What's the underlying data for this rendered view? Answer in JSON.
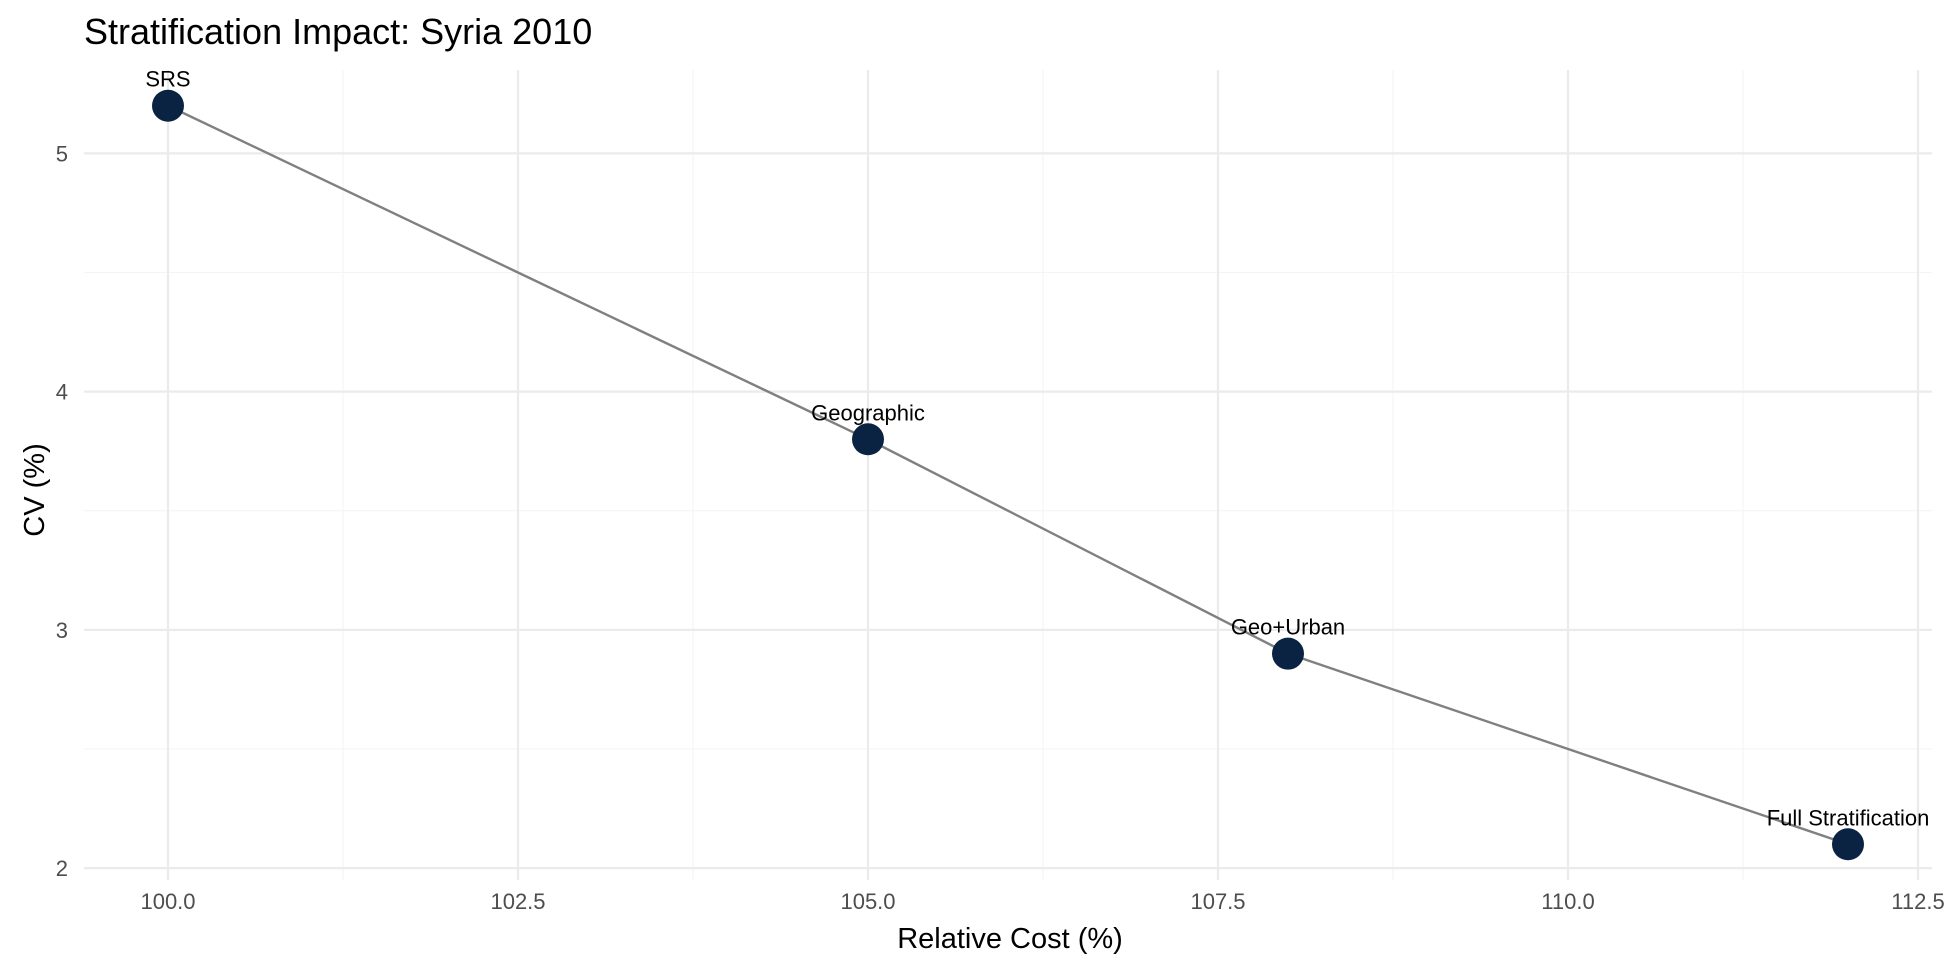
{
  "chart_data": {
    "type": "line",
    "title": "Stratification Impact: Syria 2010",
    "xlabel": "Relative Cost (%)",
    "ylabel": "CV (%)",
    "xlim": [
      99.4,
      112.6
    ],
    "ylim": [
      1.95,
      5.35
    ],
    "x_ticks": [
      100.0,
      102.5,
      105.0,
      107.5,
      110.0,
      112.5
    ],
    "x_tick_labels": [
      "100.0",
      "102.5",
      "105.0",
      "107.5",
      "110.0",
      "112.5"
    ],
    "y_ticks": [
      2,
      3,
      4,
      5
    ],
    "y_tick_labels": [
      "2",
      "3",
      "4",
      "5"
    ],
    "grid": true,
    "legend": "none",
    "series": [
      {
        "points": [
          {
            "label": "SRS",
            "x": 100,
            "y": 5.2
          },
          {
            "label": "Geographic",
            "x": 105,
            "y": 3.8
          },
          {
            "label": "Geo+Urban",
            "x": 108,
            "y": 2.9
          },
          {
            "label": "Full Stratification",
            "x": 112,
            "y": 2.1
          }
        ]
      }
    ],
    "colors": {
      "point": "#0a2342",
      "line": "#808080"
    }
  }
}
